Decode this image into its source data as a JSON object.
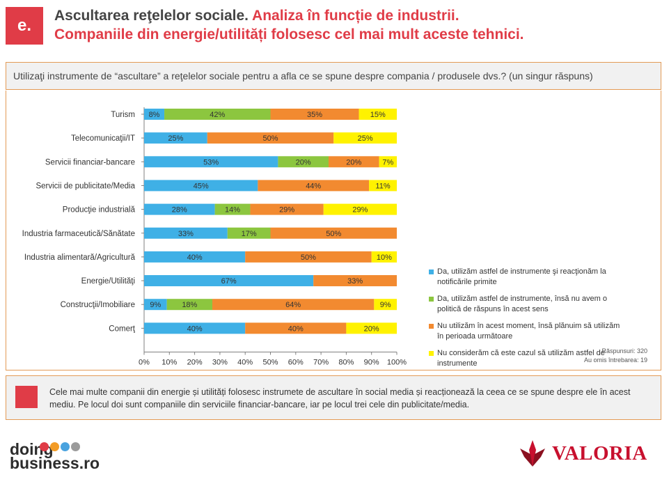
{
  "header": {
    "badge": "e.",
    "title_dark": "Ascultarea reţelelor sociale.",
    "title_red_1": " Analiza în funcție de industrii.",
    "title_red_2": "Companiile din energie/utilități folosesc cel mai mult aceste tehnici."
  },
  "question": "Utilizaţi instrumente de “ascultare” a reţelelor sociale pentru a afla ce se spune despre compania / produsele dvs.? (un singur răspuns)",
  "meta": {
    "responses": "Răspunsuri: 320",
    "skipped": "Au omis întrebarea: 19"
  },
  "conclusion": "Cele mai multe companii din energie și utilități folosesc instrumete de ascultare în social media și reacționează la ceea ce se spune despre ele în acest mediu. Pe locul doi sunt companiile din serviciile financiar-bancare, iar pe locul trei cele din publicitate/media.",
  "logos": {
    "left_line1": "doing",
    "left_line2": "business.ro",
    "left_dot_colors": [
      "#e03c47",
      "#f39c26",
      "#4aa3df",
      "#9b9b9b"
    ],
    "right": "VALORIA"
  },
  "chart_data": {
    "type": "bar",
    "orientation": "horizontal",
    "stacked": true,
    "categories": [
      "Turism",
      "Telecomunicaţii/IT",
      "Servicii financiar-bancare",
      "Servicii de publicitate/Media",
      "Producţie industrială",
      "Industria farmaceutică/Sănătate",
      "Industria alimentară/Agricultură",
      "Energie/Utilităţi",
      "Construcţii/Imobiliare",
      "Comerţ"
    ],
    "series": [
      {
        "name": "Da, utilizăm astfel de instrumente şi reacţionăm la notificările primite",
        "color": "#3fb0e6",
        "values": [
          8,
          25,
          53,
          45,
          28,
          33,
          40,
          67,
          9,
          40
        ]
      },
      {
        "name": "Da, utilizăm astfel de instrumente, însă nu avem o politică de răspuns în acest sens",
        "color": "#8cc63f",
        "values": [
          42,
          0,
          20,
          0,
          14,
          17,
          0,
          0,
          18,
          0
        ]
      },
      {
        "name": "Nu utilizăm în acest moment, însă plănuim să utilizăm în perioada următoare",
        "color": "#f28a30",
        "values": [
          35,
          50,
          20,
          44,
          29,
          50,
          50,
          33,
          64,
          40
        ]
      },
      {
        "name": "Nu considerăm că este cazul să utilizăm astfel de instrumente",
        "color": "#fff200",
        "values": [
          15,
          25,
          7,
          11,
          29,
          0,
          10,
          0,
          9,
          20
        ]
      }
    ],
    "xlim": [
      0,
      100
    ],
    "xticks": [
      "0%",
      "10%",
      "20%",
      "30%",
      "40%",
      "50%",
      "60%",
      "70%",
      "80%",
      "90%",
      "100%"
    ],
    "value_suffix": "%",
    "legend_position": "right"
  }
}
